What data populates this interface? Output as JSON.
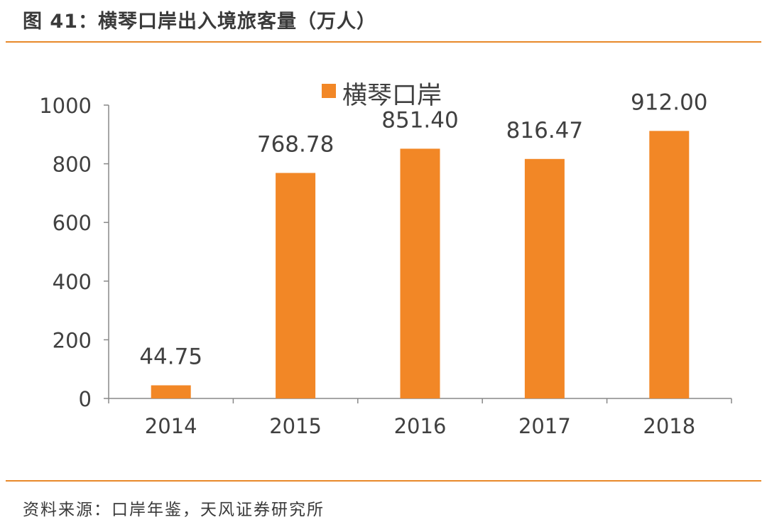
{
  "figure": {
    "title": "图 41：横琴口岸出入境旅客量（万人）",
    "source": "资料来源：口岸年鉴，天风证券研究所"
  },
  "colors": {
    "accent": "#e8892a",
    "bar": "#f28726",
    "axis": "#888888",
    "text": "#404040"
  },
  "chart_data": {
    "type": "bar",
    "categories": [
      "2014",
      "2015",
      "2016",
      "2017",
      "2018"
    ],
    "series": [
      {
        "name": "横琴口岸",
        "values": [
          44.75,
          768.78,
          851.4,
          816.47,
          912.0
        ],
        "labels": [
          "44.75",
          "768.78",
          "851.40",
          "816.47",
          "912.00"
        ]
      }
    ],
    "ylim": [
      0,
      1000
    ],
    "yticks": [
      "0",
      "200",
      "400",
      "600",
      "800",
      "1000"
    ],
    "legend": "top-center",
    "grid": false
  }
}
